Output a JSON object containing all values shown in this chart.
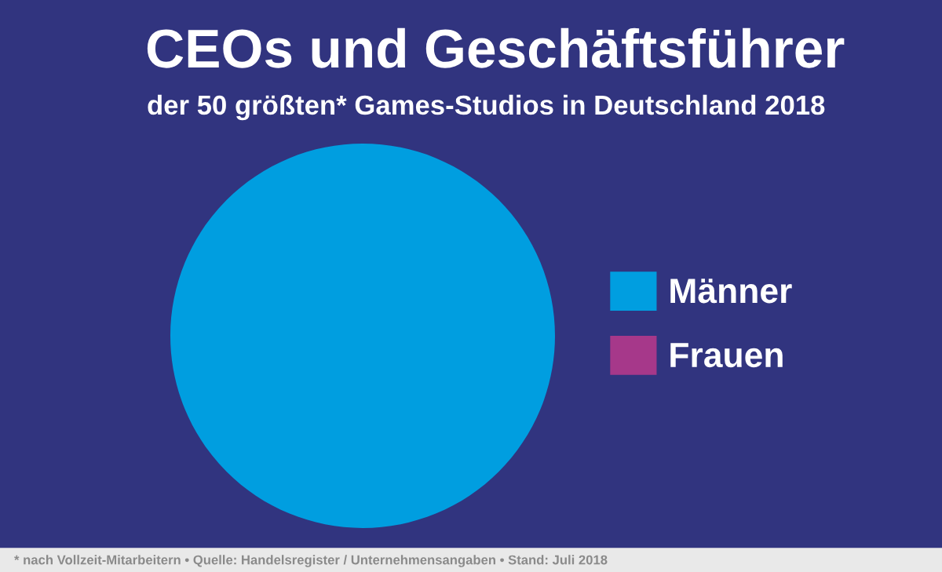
{
  "chart_data": {
    "type": "pie",
    "title": "CEOs und Geschäftsführer",
    "subtitle": "der 50 größten* Games-Studios in Deutschland 2018",
    "categories": [
      "Männer",
      "Frauen"
    ],
    "values": [
      100,
      0
    ],
    "colors": [
      "#009ee0",
      "#a6388a"
    ],
    "legend": "right",
    "annotations": [
      "* nach Vollzeit-Mitarbeitern • Quelle: Handelsregister / Unternehmensangaben • Stand: Juli 2018"
    ]
  }
}
